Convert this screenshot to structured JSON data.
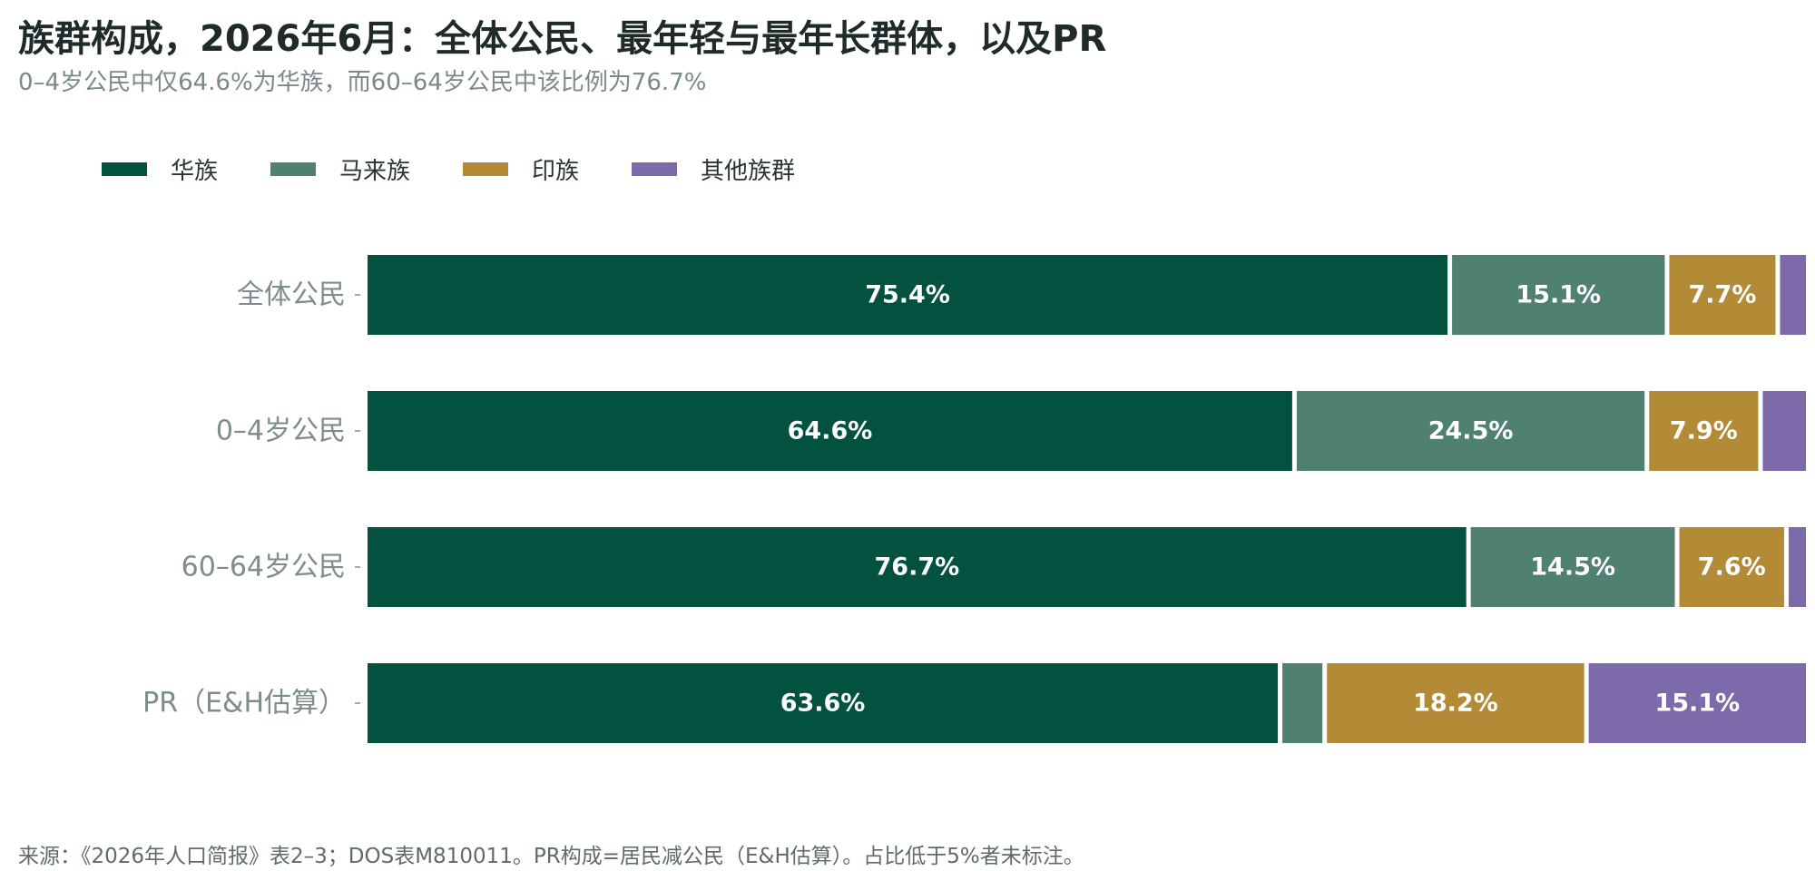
{
  "title": "族群构成，2026年6月：全体公民、最年轻与最年长群体，以及PR",
  "subtitle": "0–4岁公民中仅64.6%为华族，而60–64岁公民中该比例为76.7%",
  "footnote": "来源：《2026年人口简报》表2–3；DOS表M810011。PR构成=居民减公民（E&H估算）。占比低于5%者未标注。",
  "colors": {
    "series": [
      "#02523f",
      "#4f8071",
      "#b38a36",
      "#7c6aab"
    ],
    "category_label": "#7d8c8c",
    "data_label": "#ffffff"
  },
  "chart_data": {
    "type": "bar",
    "orientation": "horizontal",
    "stacked": true,
    "categories": [
      "全体公民",
      "0–4岁公民",
      "60–64岁公民",
      "PR（E&H估算）"
    ],
    "series": [
      {
        "name": "华族",
        "values": [
          75.4,
          64.6,
          76.7,
          63.6
        ],
        "labels": [
          "75.4%",
          "64.6%",
          "76.7%",
          "63.6%"
        ]
      },
      {
        "name": "马来族",
        "values": [
          15.1,
          24.5,
          14.5,
          3.1
        ],
        "labels": [
          "15.1%",
          "24.5%",
          "14.5%",
          ""
        ]
      },
      {
        "name": "印族",
        "values": [
          7.7,
          7.9,
          7.6,
          18.2
        ],
        "labels": [
          "7.7%",
          "7.9%",
          "7.6%",
          "18.2%"
        ]
      },
      {
        "name": "其他族群",
        "values": [
          1.8,
          3.0,
          1.2,
          15.1
        ],
        "labels": [
          "",
          "",
          "",
          "15.1%"
        ]
      }
    ],
    "xlim": [
      0,
      100
    ],
    "legend": "top-left",
    "grid": false
  }
}
